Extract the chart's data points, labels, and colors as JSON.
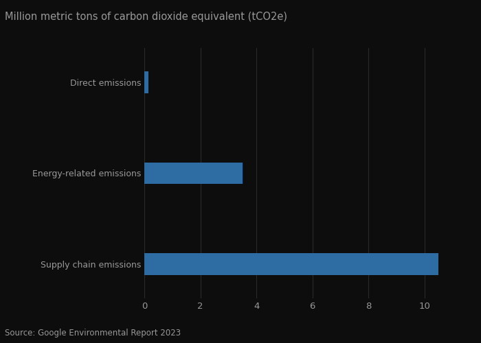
{
  "categories": [
    "Supply chain emissions",
    "Energy-related emissions",
    "Direct emissions"
  ],
  "values": [
    10.5,
    3.5,
    0.15
  ],
  "bar_color": "#2e6da4",
  "background_color": "#0d0d0d",
  "text_color": "#999999",
  "grid_color": "#2a2a2a",
  "title": "Million metric tons of carbon dioxide equivalent (tCO2e)",
  "source": "Source: Google Environmental Report 2023",
  "xlim": [
    0,
    11.5
  ],
  "xticks": [
    0,
    2,
    4,
    6,
    8,
    10
  ],
  "title_fontsize": 10.5,
  "tick_fontsize": 9.5,
  "source_fontsize": 8.5,
  "ytick_fontsize": 9,
  "bar_height": 0.38
}
